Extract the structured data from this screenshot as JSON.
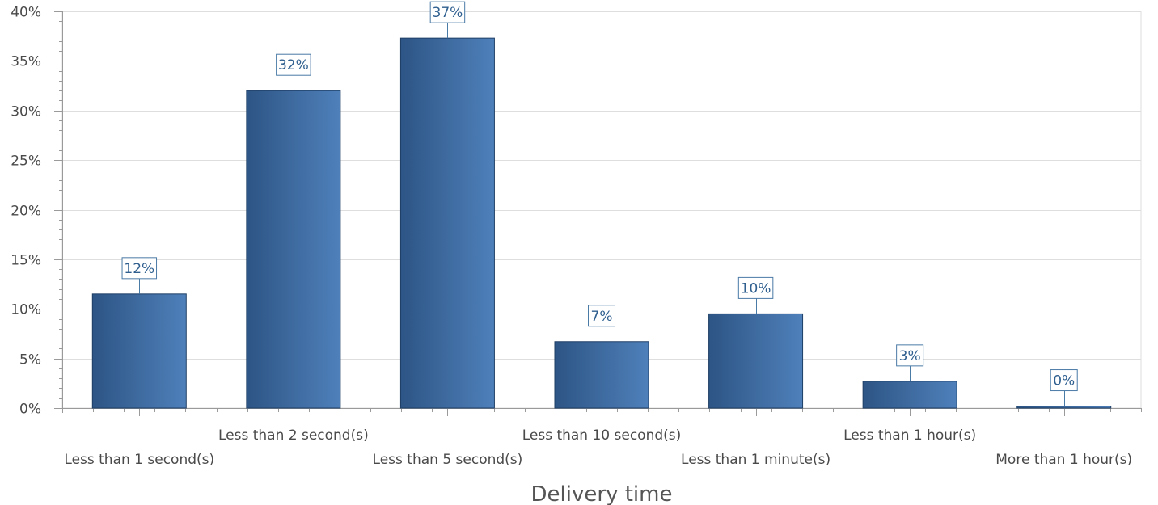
{
  "chart_data": {
    "type": "bar",
    "categories": [
      "Less than 1 second(s)",
      "Less than 2 second(s)",
      "Less than 5 second(s)",
      "Less than 10 second(s)",
      "Less than 1 minute(s)",
      "Less than 1 hour(s)",
      "More than  1 hour(s)"
    ],
    "values": [
      11.5,
      32.0,
      37.3,
      6.7,
      9.5,
      2.7,
      0.2
    ],
    "data_labels": [
      "12%",
      "32%",
      "37%",
      "7%",
      "10%",
      "3%",
      "0%"
    ],
    "xlabel": "Delivery time",
    "ylabel": "",
    "ylim": [
      0,
      40
    ],
    "yticks": [
      0,
      5,
      10,
      15,
      20,
      25,
      30,
      35,
      40
    ],
    "ytick_labels": [
      "0%",
      "5%",
      "10%",
      "15%",
      "20%",
      "25%",
      "30%",
      "35%",
      "40%"
    ],
    "grid": true,
    "legend": "none",
    "colors": {
      "bar_dark": "#2d5585",
      "bar_light": "#4f80ba",
      "bar_border": "#1f3f66",
      "label_border": "#4a7aa6",
      "label_text": "#2f5f8f",
      "grid": "#dedede",
      "axis": "#9a9a9a"
    }
  }
}
